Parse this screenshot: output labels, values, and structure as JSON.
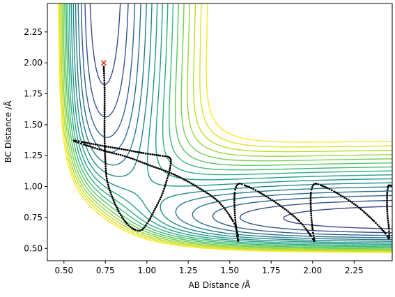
{
  "chart_data": {
    "type": "contour",
    "title": "",
    "xlabel": "AB Distance /Å",
    "ylabel": "BC Distance /Å",
    "xlim": [
      0.4,
      2.48
    ],
    "ylim": [
      0.4,
      2.48
    ],
    "xticks": [
      0.5,
      0.75,
      1.0,
      1.25,
      1.5,
      1.75,
      2.0,
      2.25
    ],
    "xtick_labels": [
      "0.50",
      "0.75",
      "1.00",
      "1.25",
      "1.50",
      "1.75",
      "2.00",
      "2.25"
    ],
    "yticks": [
      0.5,
      0.75,
      1.0,
      1.25,
      1.5,
      1.75,
      2.0,
      2.25
    ],
    "ytick_labels": [
      "0.50",
      "0.75",
      "1.00",
      "1.25",
      "1.50",
      "1.75",
      "2.00",
      "2.25"
    ],
    "grid": false,
    "colormap": "viridis",
    "contour_levels": 20,
    "start_marker": {
      "x": 0.74,
      "y": 2.0,
      "symbol": "x",
      "color": "#e8261b"
    },
    "trajectory": {
      "color": "#000000",
      "points": [
        [
          0.74,
          1.97
        ],
        [
          0.745,
          1.8
        ],
        [
          0.745,
          1.6
        ],
        [
          0.745,
          1.4
        ],
        [
          0.75,
          1.2
        ],
        [
          0.76,
          1.05
        ],
        [
          0.79,
          0.92
        ],
        [
          0.83,
          0.8
        ],
        [
          0.88,
          0.7
        ],
        [
          0.93,
          0.65
        ],
        [
          0.97,
          0.65
        ],
        [
          1.01,
          0.72
        ],
        [
          1.05,
          0.82
        ],
        [
          1.09,
          0.93
        ],
        [
          1.12,
          1.05
        ],
        [
          1.14,
          1.15
        ],
        [
          1.14,
          1.23
        ],
        [
          1.08,
          1.25
        ],
        [
          0.98,
          1.27
        ],
        [
          0.86,
          1.3
        ],
        [
          0.73,
          1.33
        ],
        [
          0.61,
          1.36
        ],
        [
          0.56,
          1.37
        ],
        [
          0.62,
          1.34
        ],
        [
          0.74,
          1.29
        ],
        [
          0.88,
          1.24
        ],
        [
          1.02,
          1.17
        ],
        [
          1.16,
          1.1
        ],
        [
          1.3,
          1.0
        ],
        [
          1.43,
          0.88
        ],
        [
          1.52,
          0.72
        ],
        [
          1.55,
          0.6
        ],
        [
          1.55,
          0.56
        ],
        [
          1.54,
          0.65
        ],
        [
          1.53,
          0.8
        ],
        [
          1.53,
          0.95
        ],
        [
          1.55,
          1.02
        ],
        [
          1.59,
          1.01
        ],
        [
          1.67,
          0.96
        ],
        [
          1.8,
          0.85
        ],
        [
          1.92,
          0.72
        ],
        [
          1.99,
          0.6
        ],
        [
          2.01,
          0.56
        ],
        [
          2.0,
          0.65
        ],
        [
          1.99,
          0.8
        ],
        [
          1.99,
          0.95
        ],
        [
          2.01,
          1.02
        ],
        [
          2.05,
          1.01
        ],
        [
          2.13,
          0.96
        ],
        [
          2.26,
          0.85
        ],
        [
          2.37,
          0.72
        ],
        [
          2.44,
          0.62
        ],
        [
          2.46,
          0.58
        ],
        [
          2.46,
          0.66
        ],
        [
          2.45,
          0.8
        ],
        [
          2.45,
          0.95
        ],
        [
          2.46,
          1.01
        ],
        [
          2.48,
          1.0
        ]
      ]
    }
  }
}
